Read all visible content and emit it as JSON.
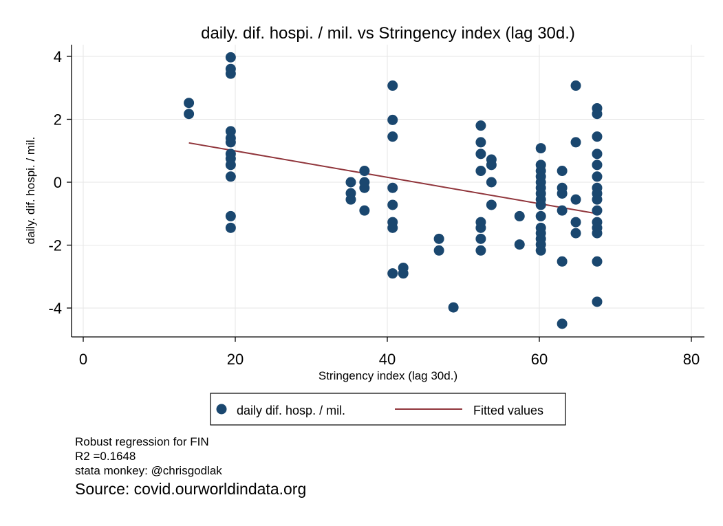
{
  "chart_data": {
    "type": "scatter",
    "title": "daily. dif. hospi. / mil. vs Stringency index (lag 30d.)",
    "xlabel": "Stringency index (lag 30d.)",
    "ylabel": "daily. dif. hospi. / mil.",
    "xlim": [
      0,
      80
    ],
    "ylim": [
      -4,
      4
    ],
    "xticks": [
      0,
      20,
      40,
      60,
      80
    ],
    "yticks": [
      -4,
      -2,
      0,
      2,
      4
    ],
    "grid": true,
    "legend_position": "bottom",
    "series": [
      {
        "name": "daily dif. hosp. / mil.",
        "kind": "scatter",
        "color": "#1a476f",
        "points": [
          [
            13.9,
            2.52
          ],
          [
            13.9,
            2.17
          ],
          [
            19.4,
            3.97
          ],
          [
            19.4,
            3.6
          ],
          [
            19.4,
            3.45
          ],
          [
            19.4,
            1.62
          ],
          [
            19.4,
            1.4
          ],
          [
            19.4,
            1.27
          ],
          [
            19.4,
            0.9
          ],
          [
            19.4,
            0.75
          ],
          [
            19.4,
            0.55
          ],
          [
            19.4,
            0.18
          ],
          [
            19.4,
            -1.08
          ],
          [
            19.4,
            -1.45
          ],
          [
            35.2,
            0.0
          ],
          [
            35.2,
            -0.35
          ],
          [
            35.2,
            -0.55
          ],
          [
            37.0,
            0.36
          ],
          [
            37.0,
            0.0
          ],
          [
            37.0,
            -0.18
          ],
          [
            37.0,
            -0.9
          ],
          [
            40.7,
            3.07
          ],
          [
            40.7,
            1.98
          ],
          [
            40.7,
            1.45
          ],
          [
            40.7,
            -0.18
          ],
          [
            40.7,
            -0.72
          ],
          [
            40.7,
            -1.27
          ],
          [
            40.7,
            -1.45
          ],
          [
            40.7,
            -2.9
          ],
          [
            42.1,
            -2.72
          ],
          [
            42.1,
            -2.9
          ],
          [
            46.8,
            -1.8
          ],
          [
            46.8,
            -2.17
          ],
          [
            48.7,
            -3.98
          ],
          [
            52.3,
            1.8
          ],
          [
            52.3,
            1.27
          ],
          [
            52.3,
            0.9
          ],
          [
            52.3,
            0.36
          ],
          [
            52.3,
            -1.27
          ],
          [
            52.3,
            -1.45
          ],
          [
            52.3,
            -1.8
          ],
          [
            52.3,
            -2.17
          ],
          [
            53.7,
            0.72
          ],
          [
            53.7,
            0.55
          ],
          [
            53.7,
            0.0
          ],
          [
            53.7,
            -0.72
          ],
          [
            57.4,
            -1.08
          ],
          [
            57.4,
            -1.98
          ],
          [
            60.2,
            1.08
          ],
          [
            60.2,
            0.55
          ],
          [
            60.2,
            0.36
          ],
          [
            60.2,
            0.18
          ],
          [
            60.2,
            0.0
          ],
          [
            60.2,
            -0.18
          ],
          [
            60.2,
            -0.36
          ],
          [
            60.2,
            -0.55
          ],
          [
            60.2,
            -0.72
          ],
          [
            60.2,
            -1.08
          ],
          [
            60.2,
            -1.45
          ],
          [
            60.2,
            -1.62
          ],
          [
            60.2,
            -1.8
          ],
          [
            60.2,
            -1.98
          ],
          [
            60.2,
            -2.17
          ],
          [
            63.0,
            0.36
          ],
          [
            63.0,
            -0.18
          ],
          [
            63.0,
            -0.36
          ],
          [
            63.0,
            -0.9
          ],
          [
            63.0,
            -2.52
          ],
          [
            63.0,
            -4.5
          ],
          [
            64.8,
            3.07
          ],
          [
            64.8,
            1.27
          ],
          [
            64.8,
            -0.55
          ],
          [
            64.8,
            -1.27
          ],
          [
            64.8,
            -1.62
          ],
          [
            67.6,
            2.35
          ],
          [
            67.6,
            2.17
          ],
          [
            67.6,
            1.45
          ],
          [
            67.6,
            0.9
          ],
          [
            67.6,
            0.55
          ],
          [
            67.6,
            0.18
          ],
          [
            67.6,
            -0.18
          ],
          [
            67.6,
            -0.36
          ],
          [
            67.6,
            -0.55
          ],
          [
            67.6,
            -0.9
          ],
          [
            67.6,
            -1.27
          ],
          [
            67.6,
            -1.45
          ],
          [
            67.6,
            -1.62
          ],
          [
            67.6,
            -2.52
          ],
          [
            67.6,
            -3.8
          ]
        ]
      },
      {
        "name": "Fitted values",
        "kind": "line",
        "color": "#90353b",
        "points": [
          [
            13.9,
            1.25
          ],
          [
            67.6,
            -1.0
          ]
        ]
      }
    ]
  },
  "notes": {
    "line1": "Robust regression for FIN",
    "line2": "R2 =0.1648",
    "line3": "stata monkey: @chrisgodlak",
    "source": "Source: covid.ourworldindata.org"
  }
}
